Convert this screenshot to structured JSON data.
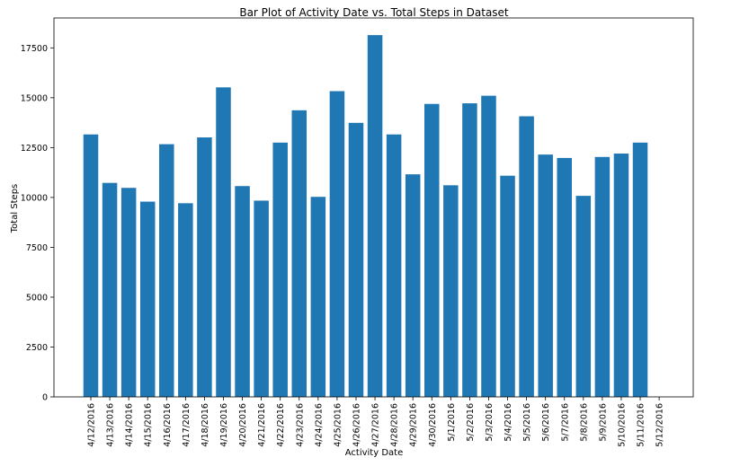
{
  "chart_data": {
    "type": "bar",
    "title": "Bar Plot of Activity Date vs. Total Steps in Dataset",
    "xlabel": "Activity Date",
    "ylabel": "Total Steps",
    "ylim": [
      0,
      19000
    ],
    "yticks": [
      0,
      2500,
      5000,
      7500,
      10000,
      12500,
      15000,
      17500
    ],
    "grid": false,
    "bar_color": "#1f77b4",
    "categories": [
      "4/12/2016",
      "4/13/2016",
      "4/14/2016",
      "4/15/2016",
      "4/16/2016",
      "4/17/2016",
      "4/18/2016",
      "4/19/2016",
      "4/20/2016",
      "4/21/2016",
      "4/22/2016",
      "4/23/2016",
      "4/24/2016",
      "4/25/2016",
      "4/26/2016",
      "4/27/2016",
      "4/28/2016",
      "4/29/2016",
      "4/30/2016",
      "5/1/2016",
      "5/2/2016",
      "5/3/2016",
      "5/4/2016",
      "5/5/2016",
      "5/6/2016",
      "5/7/2016",
      "5/8/2016",
      "5/9/2016",
      "5/10/2016",
      "5/11/2016",
      "5/12/2016"
    ],
    "values": [
      13160,
      10730,
      10480,
      9790,
      12670,
      9710,
      13010,
      15520,
      10570,
      9840,
      12750,
      14370,
      10030,
      15330,
      13740,
      18140,
      13160,
      11160,
      14690,
      10610,
      14720,
      15100,
      11090,
      14070,
      12150,
      11980,
      10080,
      12030,
      12200,
      12750,
      0
    ]
  }
}
